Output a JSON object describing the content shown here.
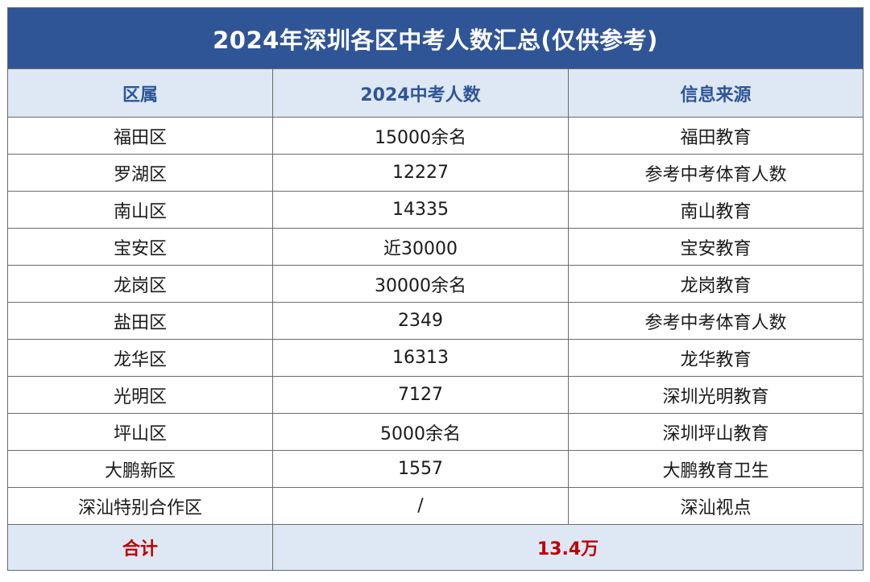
{
  "title": "2024年深圳各区中考人数汇总(仅供参考)",
  "headers": {
    "district": "区属",
    "count": "2024中考人数",
    "source": "信息来源"
  },
  "rows": [
    {
      "district": "福田区",
      "count": "15000余名",
      "source": "福田教育"
    },
    {
      "district": "罗湖区",
      "count": "12227",
      "source": "参考中考体育人数"
    },
    {
      "district": "南山区",
      "count": "14335",
      "source": "南山教育"
    },
    {
      "district": "宝安区",
      "count": "近30000",
      "source": "宝安教育"
    },
    {
      "district": "龙岗区",
      "count": "30000余名",
      "source": "龙岗教育"
    },
    {
      "district": "盐田区",
      "count": "2349",
      "source": "参考中考体育人数"
    },
    {
      "district": "龙华区",
      "count": "16313",
      "source": "龙华教育"
    },
    {
      "district": "光明区",
      "count": "7127",
      "source": "深圳光明教育"
    },
    {
      "district": "坪山区",
      "count": "5000余名",
      "source": "深圳坪山教育"
    },
    {
      "district": "大鹏新区",
      "count": "1557",
      "source": "大鹏教育卫生"
    },
    {
      "district": "深汕特别合作区",
      "count": "/",
      "source": "深汕视点"
    }
  ],
  "total": {
    "label": "合计",
    "value": "13.4万"
  },
  "colors": {
    "title_bg": "#2f5597",
    "header_bg": "#dde8f4",
    "header_text": "#2f5597",
    "total_text": "#c00000"
  }
}
